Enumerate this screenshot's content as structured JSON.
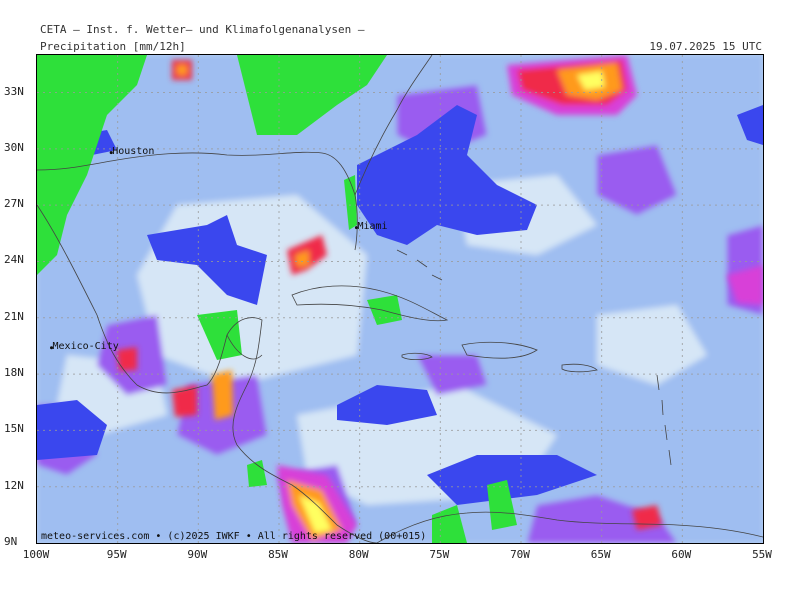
{
  "header": {
    "title": "CETA — Inst. f. Wetter— und Klimafolgenanalysen —",
    "parameter": "Precipitation [mm/12h]",
    "valid_time": "19.07.2025 15 UTC"
  },
  "credit": "meteo-services.com • (c)2025 IWKF • All rights reserved (00+015)",
  "map_extent": {
    "lon": [
      -100,
      -55
    ],
    "lat": [
      9,
      35
    ]
  },
  "axes": {
    "lat_ticks": [
      {
        "lat": 33,
        "label": "33N"
      },
      {
        "lat": 30,
        "label": "30N"
      },
      {
        "lat": 27,
        "label": "27N"
      },
      {
        "lat": 24,
        "label": "24N"
      },
      {
        "lat": 21,
        "label": "21N"
      },
      {
        "lat": 18,
        "label": "18N"
      },
      {
        "lat": 15,
        "label": "15N"
      },
      {
        "lat": 12,
        "label": "12N"
      },
      {
        "lat": 9,
        "label": "9N"
      }
    ],
    "lon_ticks": [
      {
        "lon": -100,
        "label": "100W"
      },
      {
        "lon": -95,
        "label": "95W"
      },
      {
        "lon": -90,
        "label": "90W"
      },
      {
        "lon": -85,
        "label": "85W"
      },
      {
        "lon": -80,
        "label": "80W"
      },
      {
        "lon": -75,
        "label": "75W"
      },
      {
        "lon": -70,
        "label": "70W"
      },
      {
        "lon": -65,
        "label": "65W"
      },
      {
        "lon": -60,
        "label": "60W"
      },
      {
        "lon": -55,
        "label": "55W"
      }
    ]
  },
  "cities": [
    {
      "name": "Houston",
      "lon": -95.4,
      "lat": 29.8
    },
    {
      "name": "Miami",
      "lon": -80.2,
      "lat": 25.8
    },
    {
      "name": "Mexico-City",
      "lon": -99.1,
      "lat": 19.4
    }
  ],
  "colors": {
    "none": "#2ee03a",
    "light": "#d6e6f6",
    "light2": "#b7d0f2",
    "moderate": "#8aaef0",
    "moderate2": "#6f8ff0",
    "blue": "#3a47ee",
    "violet": "#9a5cf0",
    "magenta": "#d83fd8",
    "red": "#f02a4a",
    "orange": "#ff9a1a",
    "yellow": "#ffff60"
  }
}
